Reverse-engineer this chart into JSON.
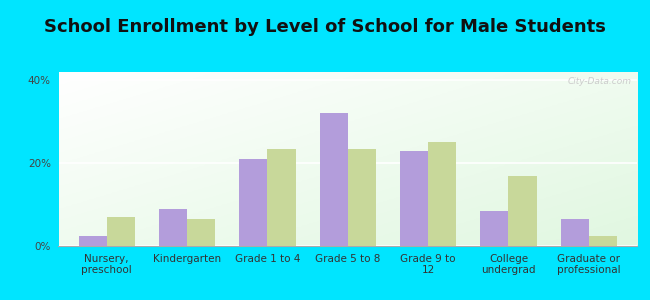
{
  "title": "School Enrollment by Level of School for Male Students",
  "categories": [
    "Nursery,\npreschool",
    "Kindergarten",
    "Grade 1 to 4",
    "Grade 5 to 8",
    "Grade 9 to\n12",
    "College\nundergrad",
    "Graduate or\nprofessional"
  ],
  "crooks": [
    2.5,
    9.0,
    21.0,
    32.0,
    23.0,
    8.5,
    6.5
  ],
  "south_dakota": [
    7.0,
    6.5,
    23.5,
    23.5,
    25.0,
    17.0,
    2.5
  ],
  "crooks_color": "#b39ddb",
  "south_dakota_color": "#c8d89a",
  "background_color": "#00e5ff",
  "ylim": [
    0,
    42
  ],
  "yticks": [
    0,
    20,
    40
  ],
  "ytick_labels": [
    "0%",
    "20%",
    "40%"
  ],
  "bar_width": 0.35,
  "title_fontsize": 13,
  "tick_fontsize": 7.5,
  "legend_fontsize": 9
}
